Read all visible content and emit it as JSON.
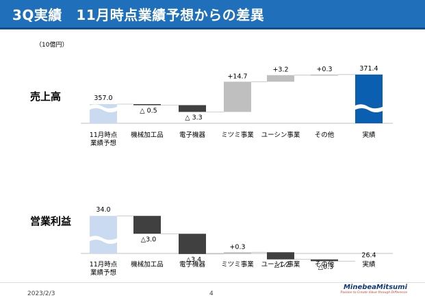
{
  "header": {
    "title": "3Q実績　11月時点業績予想からの差異"
  },
  "unit_label": "（10億円）",
  "footer": {
    "date": "2023/2/3",
    "page": "4",
    "logo": "MinebeaMitsumi",
    "tagline": "Passion to Create Value through Difference"
  },
  "colors": {
    "header": "#1f6fba",
    "start_bar": "#c9daf1",
    "negative": "#404040",
    "positive": "#bfbfbf",
    "actual": "#0a5fb0"
  },
  "chart_data": [
    {
      "type": "bar",
      "title": "売上高",
      "categories": [
        "11月時点\n業績予想",
        "機械加工品",
        "電子機器",
        "ミツミ事業",
        "ユーシン事業",
        "その他",
        "実績"
      ],
      "values": [
        357.0,
        -0.5,
        -3.3,
        14.7,
        3.2,
        0.3,
        371.4
      ],
      "labels": [
        "357.0",
        "△ 0.5",
        "△ 3.3",
        "+14.7",
        "+3.2",
        "+0.3",
        "371.4"
      ],
      "roles": [
        "start",
        "delta",
        "delta",
        "delta",
        "delta",
        "delta",
        "end"
      ],
      "axis_break": true
    },
    {
      "type": "bar",
      "title": "営業利益",
      "categories": [
        "11月時点\n業績予想",
        "機械加工品",
        "電子機器",
        "ミツミ事業",
        "ユーシン事業",
        "その他",
        "実績"
      ],
      "values": [
        34.0,
        -3.0,
        -3.4,
        0.3,
        -1.2,
        -0.3,
        26.4
      ],
      "labels": [
        "34.0",
        "△3.0",
        "△3.4",
        "+0.3",
        "△1.2",
        "△0.3",
        "26.4"
      ],
      "roles": [
        "start",
        "delta",
        "delta",
        "delta",
        "delta",
        "delta",
        "end"
      ],
      "axis_break": true
    }
  ]
}
